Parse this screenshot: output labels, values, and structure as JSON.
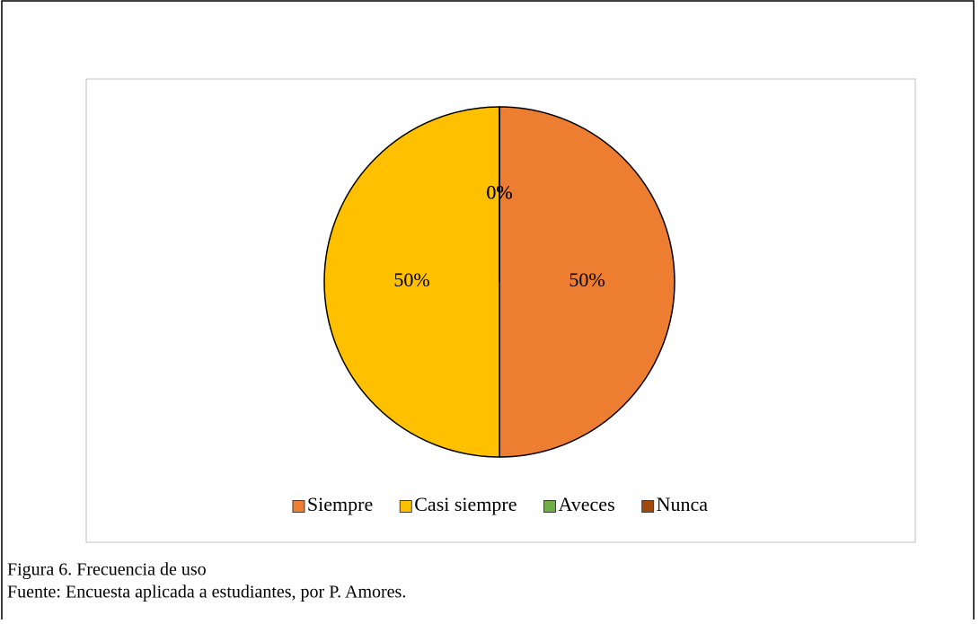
{
  "chart_data": {
    "type": "pie",
    "categories": [
      "Siempre",
      "Casi siempre",
      "Aveces",
      "Nunca"
    ],
    "values": [
      50,
      50,
      0,
      0
    ],
    "value_labels": [
      "50%",
      "50%",
      "0%",
      "0%"
    ],
    "colors": [
      "#ED7D31",
      "#FFC000",
      "#70AD47",
      "#9E480E"
    ],
    "legend": "bottom"
  },
  "caption": {
    "figure": "Figura 6. Frecuencia de uso",
    "source": "Fuente: Encuesta aplicada a estudiantes, por P. Amores."
  }
}
